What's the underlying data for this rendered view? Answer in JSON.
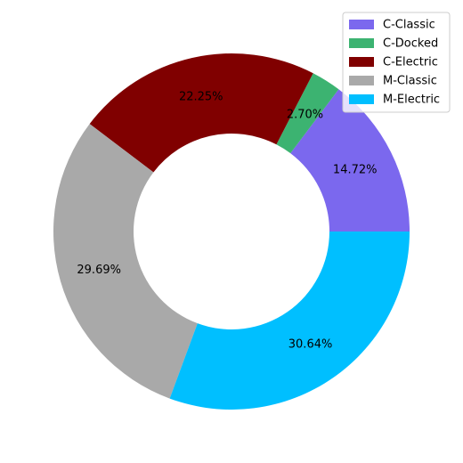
{
  "chart_data": {
    "type": "pie",
    "variant": "donut",
    "categories": [
      "C-Classic",
      "C-Docked",
      "C-Electric",
      "M-Classic",
      "M-Electric"
    ],
    "values": [
      14.72,
      2.7,
      22.25,
      29.69,
      30.64
    ],
    "labels": [
      "14.72%",
      "2.70%",
      "22.25%",
      "29.69%",
      "30.64%"
    ],
    "colors": [
      "#7b68ee",
      "#3cb371",
      "#800000",
      "#a9a9a9",
      "#00bfff"
    ],
    "start_angle_deg": 0,
    "direction": "counterclockwise",
    "legend": {
      "position": "top-right",
      "entries": [
        "C-Classic",
        "C-Docked",
        "C-Electric",
        "M-Classic",
        "M-Electric"
      ]
    }
  }
}
